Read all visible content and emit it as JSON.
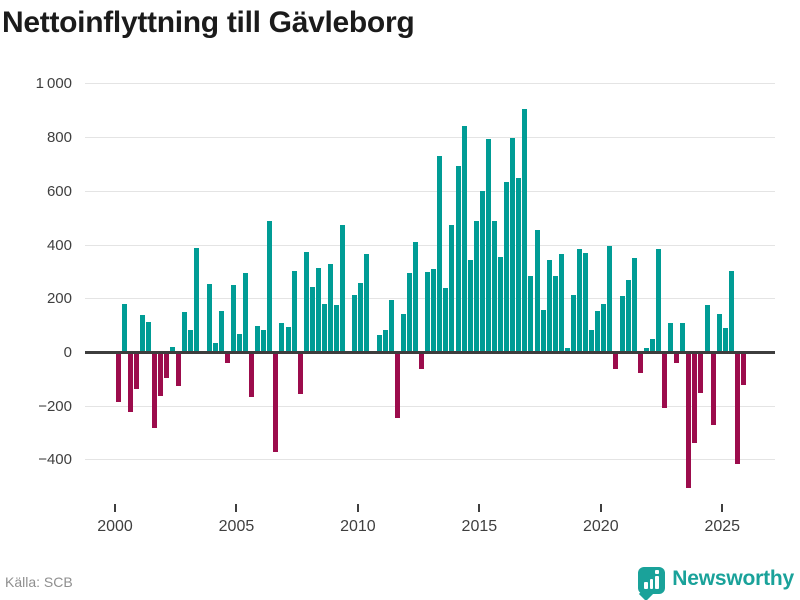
{
  "header": {
    "title": "Nettoinflyttning till Gävleborg"
  },
  "footer": {
    "source_label": "Källa: SCB",
    "brand": "Newsworthy"
  },
  "colors": {
    "positive": "#009c95",
    "negative": "#9c0c4c",
    "brand_teal": "#1aa29a",
    "grid": "#e4e4e4",
    "zero_line": "#3d3d3d",
    "title_text": "#1b1b1b",
    "axis_text": "#3f3f3f",
    "source_text": "#8f8f8f"
  },
  "chart_data": {
    "type": "bar",
    "title": "Nettoinflyttning till Gävleborg",
    "frequency": "quarterly",
    "start": "2000Q1",
    "end": "2025Q4",
    "values": [
      -180,
      180,
      -215,
      -130,
      140,
      115,
      -275,
      -155,
      -90,
      20,
      -120,
      150,
      85,
      390,
      0,
      255,
      35,
      155,
      -35,
      250,
      70,
      295,
      -160,
      100,
      85,
      490,
      -365,
      110,
      95,
      305,
      -150,
      375,
      245,
      315,
      180,
      330,
      175,
      475,
      0,
      215,
      260,
      365,
      0,
      65,
      85,
      195,
      -240,
      145,
      295,
      410,
      -55,
      300,
      310,
      730,
      240,
      475,
      695,
      845,
      345,
      490,
      600,
      795,
      490,
      355,
      635,
      800,
      650,
      905,
      285,
      455,
      160,
      345,
      285,
      365,
      15,
      215,
      385,
      370,
      85,
      155,
      180,
      395,
      -55,
      210,
      270,
      350,
      -70,
      15,
      50,
      385,
      -200,
      110,
      -35,
      110,
      -500,
      -330,
      -145,
      175,
      -265,
      145,
      90,
      305,
      -410,
      -115
    ],
    "yticks": [
      1000,
      800,
      600,
      400,
      200,
      0,
      -200,
      -400
    ],
    "ylim": [
      -520,
      1010
    ],
    "year_ticks": [
      2000,
      2005,
      2010,
      2015,
      2020,
      2025
    ],
    "grid": true,
    "legend": "none",
    "xlabel": "",
    "ylabel": ""
  }
}
